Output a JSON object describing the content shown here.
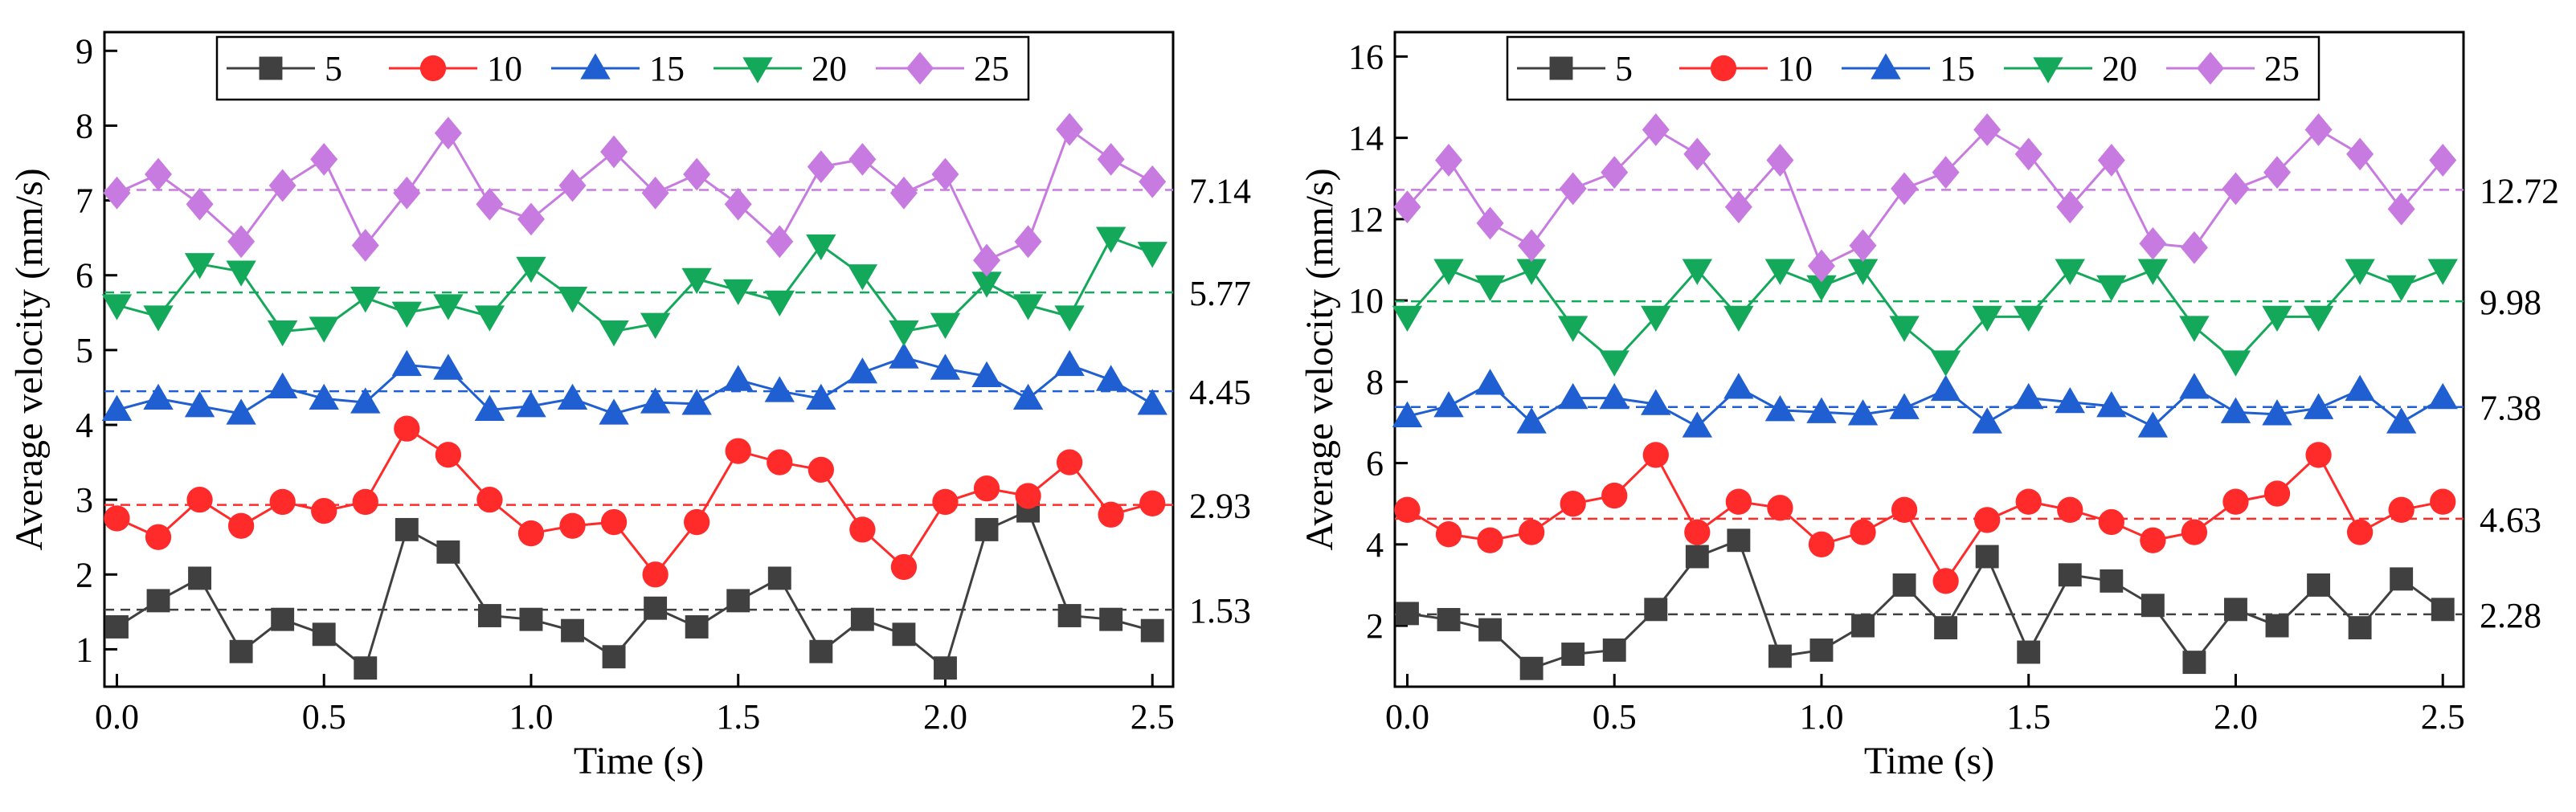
{
  "chart_data": [
    {
      "type": "line",
      "xlabel": "Time (s)",
      "ylabel": "Average velocity (mm/s)",
      "xlim": [
        -0.03,
        2.55
      ],
      "ylim": [
        0.5,
        9.25
      ],
      "xticks": [
        0.0,
        0.5,
        1.0,
        1.5,
        2.0,
        2.5
      ],
      "xtick_labels": [
        "0.0",
        "0.5",
        "1.0",
        "1.5",
        "2.0",
        "2.5"
      ],
      "yticks": [
        1,
        2,
        3,
        4,
        5,
        6,
        7,
        8,
        9
      ],
      "ytick_labels": [
        "1",
        "2",
        "3",
        "4",
        "5",
        "6",
        "7",
        "8",
        "9"
      ],
      "legend_position": "top-center",
      "x": [
        0.0,
        0.1,
        0.2,
        0.3,
        0.4,
        0.5,
        0.6,
        0.7,
        0.8,
        0.9,
        1.0,
        1.1,
        1.2,
        1.3,
        1.4,
        1.5,
        1.6,
        1.7,
        1.8,
        1.9,
        2.0,
        2.1,
        2.2,
        2.3,
        2.4,
        2.5
      ],
      "series": [
        {
          "name": "5",
          "color": "#404040",
          "marker": "square",
          "mean": 1.53,
          "mean_label": "1.53",
          "values": [
            1.3,
            1.65,
            1.95,
            0.97,
            1.4,
            1.2,
            0.75,
            2.6,
            2.3,
            1.45,
            1.4,
            1.25,
            0.9,
            1.55,
            1.3,
            1.65,
            1.95,
            0.97,
            1.4,
            1.2,
            0.75,
            2.6,
            2.85,
            1.45,
            1.4,
            1.25
          ]
        },
        {
          "name": "10",
          "color": "#ff2a2a",
          "marker": "circle",
          "mean": 2.93,
          "mean_label": "2.93",
          "values": [
            2.75,
            2.5,
            3.0,
            2.65,
            2.97,
            2.85,
            2.97,
            3.95,
            3.6,
            3.0,
            2.55,
            2.65,
            2.7,
            2.0,
            2.7,
            3.65,
            3.5,
            3.4,
            2.6,
            2.1,
            2.97,
            3.15,
            3.05,
            3.5,
            2.8,
            2.95
          ]
        },
        {
          "name": "15",
          "color": "#1f5fd1",
          "marker": "triangle-up",
          "mean": 4.45,
          "mean_label": "4.45",
          "values": [
            4.2,
            4.35,
            4.25,
            4.15,
            4.5,
            4.35,
            4.3,
            4.8,
            4.75,
            4.2,
            4.25,
            4.35,
            4.15,
            4.3,
            4.28,
            4.6,
            4.45,
            4.35,
            4.7,
            4.9,
            4.75,
            4.65,
            4.35,
            4.8,
            4.6,
            4.28
          ]
        },
        {
          "name": "20",
          "color": "#14a85a",
          "marker": "triangle-down",
          "mean": 5.77,
          "mean_label": "5.77",
          "values": [
            5.6,
            5.45,
            6.15,
            6.05,
            5.25,
            5.3,
            5.7,
            5.5,
            5.6,
            5.45,
            6.1,
            5.7,
            5.25,
            5.35,
            5.95,
            5.8,
            5.65,
            6.4,
            6.0,
            5.25,
            5.35,
            5.9,
            5.6,
            5.45,
            6.5,
            6.3
          ]
        },
        {
          "name": "25",
          "color": "#c77be0",
          "marker": "diamond",
          "mean": 7.14,
          "mean_label": "7.14",
          "values": [
            7.1,
            7.35,
            6.95,
            6.45,
            7.2,
            7.55,
            6.4,
            7.1,
            7.9,
            6.95,
            6.75,
            7.2,
            7.65,
            7.1,
            7.35,
            6.95,
            6.45,
            7.45,
            7.55,
            7.1,
            7.35,
            6.2,
            6.45,
            7.95,
            7.55,
            7.25
          ]
        }
      ]
    },
    {
      "type": "line",
      "xlabel": "Time (s)",
      "ylabel": "Average velocity (mm/s)",
      "xlim": [
        -0.03,
        2.55
      ],
      "ylim": [
        0.5,
        16.6
      ],
      "xticks": [
        0.0,
        0.5,
        1.0,
        1.5,
        2.0,
        2.5
      ],
      "xtick_labels": [
        "0.0",
        "0.5",
        "1.0",
        "1.5",
        "2.0",
        "2.5"
      ],
      "yticks": [
        2,
        4,
        6,
        8,
        10,
        12,
        14,
        16
      ],
      "ytick_labels": [
        "2",
        "4",
        "6",
        "8",
        "10",
        "12",
        "14",
        "16"
      ],
      "legend_position": "top-center",
      "x": [
        0.0,
        0.1,
        0.2,
        0.3,
        0.4,
        0.5,
        0.6,
        0.7,
        0.8,
        0.9,
        1.0,
        1.1,
        1.2,
        1.3,
        1.4,
        1.5,
        1.6,
        1.7,
        1.8,
        1.9,
        2.0,
        2.1,
        2.2,
        2.3,
        2.4,
        2.5
      ],
      "series": [
        {
          "name": "5",
          "color": "#404040",
          "marker": "square",
          "mean": 2.28,
          "mean_label": "2.28",
          "values": [
            2.3,
            2.15,
            1.9,
            0.95,
            1.3,
            1.4,
            2.4,
            3.7,
            4.1,
            1.25,
            1.4,
            2.0,
            3.0,
            1.95,
            3.7,
            1.35,
            3.25,
            3.1,
            2.5,
            1.1,
            2.4,
            2.0,
            3.0,
            1.95,
            3.15,
            2.4
          ]
        },
        {
          "name": "10",
          "color": "#ff2a2a",
          "marker": "circle",
          "mean": 4.63,
          "mean_label": "4.63",
          "values": [
            4.85,
            4.25,
            4.1,
            4.3,
            5.0,
            5.2,
            6.2,
            4.3,
            5.05,
            4.9,
            4.0,
            4.3,
            4.85,
            3.1,
            4.6,
            5.05,
            4.85,
            4.55,
            4.1,
            4.3,
            5.05,
            5.25,
            6.2,
            4.3,
            4.85,
            5.05
          ]
        },
        {
          "name": "15",
          "color": "#1f5fd1",
          "marker": "triangle-up",
          "mean": 7.38,
          "mean_label": "7.38",
          "values": [
            7.15,
            7.4,
            7.95,
            7.0,
            7.6,
            7.6,
            7.45,
            6.9,
            7.85,
            7.3,
            7.25,
            7.2,
            7.35,
            7.8,
            7.0,
            7.6,
            7.5,
            7.4,
            6.9,
            7.85,
            7.25,
            7.2,
            7.35,
            7.8,
            7.0,
            7.6
          ]
        },
        {
          "name": "20",
          "color": "#14a85a",
          "marker": "triangle-down",
          "mean": 9.98,
          "mean_label": "9.98",
          "values": [
            9.6,
            10.75,
            10.35,
            10.75,
            9.35,
            8.5,
            9.6,
            10.75,
            9.6,
            10.75,
            10.35,
            10.75,
            9.35,
            8.5,
            9.6,
            9.6,
            10.75,
            10.35,
            10.75,
            9.35,
            8.5,
            9.6,
            9.6,
            10.75,
            10.35,
            10.75
          ]
        },
        {
          "name": "25",
          "color": "#c77be0",
          "marker": "diamond",
          "mean": 12.72,
          "mean_label": "12.72",
          "values": [
            12.3,
            13.45,
            11.9,
            11.35,
            12.75,
            13.15,
            14.2,
            13.6,
            12.3,
            13.45,
            10.85,
            11.35,
            12.75,
            13.15,
            14.2,
            13.6,
            12.3,
            13.45,
            11.4,
            11.3,
            12.75,
            13.15,
            14.2,
            13.6,
            12.25,
            13.45
          ]
        }
      ]
    }
  ]
}
